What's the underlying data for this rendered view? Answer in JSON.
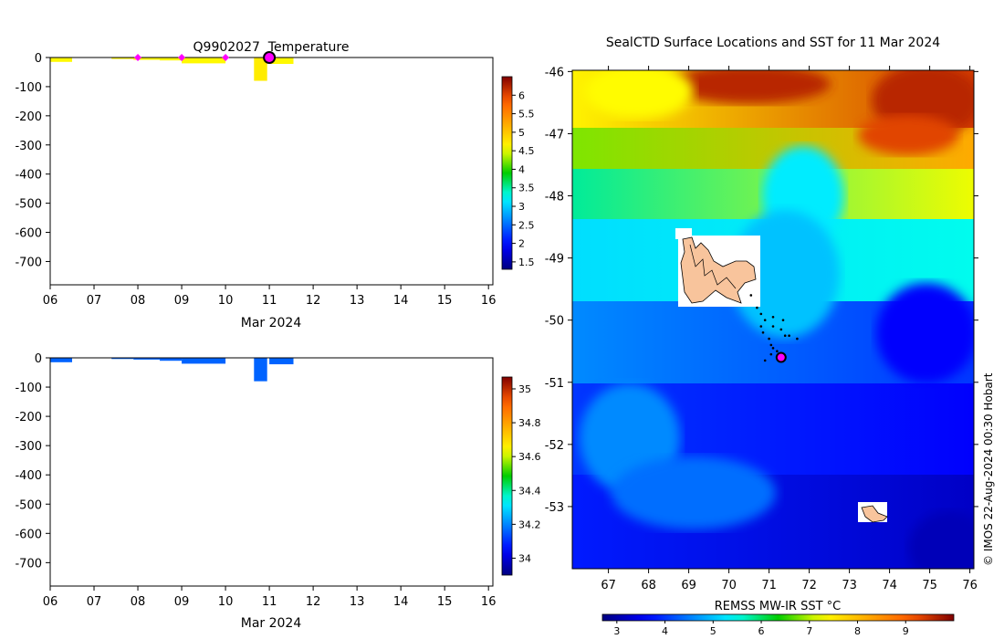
{
  "chart_data": [
    {
      "id": "temperature-profile",
      "type": "heatmap",
      "title": "Q9902027  Temperature",
      "xlabel": "Mar 2024",
      "ylabel": "",
      "x_ticks": [
        "06",
        "07",
        "08",
        "09",
        "10",
        "11",
        "12",
        "13",
        "14",
        "15",
        "16"
      ],
      "x_tick_values": [
        6,
        7,
        8,
        9,
        10,
        11,
        12,
        13,
        14,
        15,
        16
      ],
      "xlim": [
        6,
        16.1
      ],
      "y_ticks": [
        0,
        -100,
        -200,
        -300,
        -400,
        -500,
        -600,
        -700
      ],
      "ylim": [
        -780,
        0
      ],
      "grid": false,
      "colorbar": {
        "range": [
          1.3,
          6.5
        ],
        "ticks": [
          1.5,
          2,
          2.5,
          3,
          3.5,
          4,
          4.5,
          5,
          5.5,
          6
        ],
        "tick_labels": [
          "1.5",
          "2",
          "2.5",
          "3",
          "3.5",
          "4",
          "4.5",
          "5",
          "5.5",
          "6"
        ]
      },
      "profiles": [
        {
          "x0": 6.0,
          "x1": 6.5,
          "depth": -15,
          "value": 4.6
        },
        {
          "x0": 7.4,
          "x1": 7.9,
          "depth": -5,
          "value": 4.6
        },
        {
          "x0": 7.9,
          "x1": 8.5,
          "depth": -8,
          "value": 4.6
        },
        {
          "x0": 8.5,
          "x1": 9.0,
          "depth": -10,
          "value": 4.6
        },
        {
          "x0": 9.0,
          "x1": 10.0,
          "depth": -20,
          "value": 4.6
        },
        {
          "x0": 10.65,
          "x1": 10.95,
          "depth": -80,
          "value": 4.7
        },
        {
          "x0": 11.0,
          "x1": 11.55,
          "depth": -22,
          "value": 4.6
        }
      ],
      "surface_markers": [
        8.0,
        9.0,
        10.0
      ],
      "current_marker": 11.0
    },
    {
      "id": "salinity-profile",
      "type": "heatmap",
      "title": "",
      "xlabel": "Mar 2024",
      "ylabel": "",
      "x_ticks": [
        "06",
        "07",
        "08",
        "09",
        "10",
        "11",
        "12",
        "13",
        "14",
        "15",
        "16"
      ],
      "x_tick_values": [
        6,
        7,
        8,
        9,
        10,
        11,
        12,
        13,
        14,
        15,
        16
      ],
      "xlim": [
        6,
        16.1
      ],
      "y_ticks": [
        0,
        -100,
        -200,
        -300,
        -400,
        -500,
        -600,
        -700
      ],
      "ylim": [
        -780,
        0
      ],
      "grid": false,
      "colorbar": {
        "range": [
          33.9,
          35.07
        ],
        "ticks": [
          34.0,
          34.2,
          34.4,
          34.6,
          34.8,
          35.0
        ],
        "tick_labels": [
          "34",
          "34.2",
          "34.4",
          "34.6",
          "34.8",
          "35"
        ]
      },
      "profiles": [
        {
          "x0": 6.0,
          "x1": 6.5,
          "depth": -15,
          "value": 34.16
        },
        {
          "x0": 7.4,
          "x1": 7.9,
          "depth": -4,
          "value": 34.16
        },
        {
          "x0": 7.9,
          "x1": 8.5,
          "depth": -6,
          "value": 34.16
        },
        {
          "x0": 8.5,
          "x1": 9.0,
          "depth": -10,
          "value": 34.16
        },
        {
          "x0": 9.0,
          "x1": 10.0,
          "depth": -20,
          "value": 34.16
        },
        {
          "x0": 10.65,
          "x1": 10.95,
          "depth": -80,
          "value": 34.16
        },
        {
          "x0": 11.0,
          "x1": 11.55,
          "depth": -22,
          "value": 34.16
        }
      ]
    },
    {
      "id": "sst-map",
      "type": "heatmap",
      "title": "SealCTD Surface Locations and SST for 11 Mar 2024",
      "xlabel": "",
      "ylabel": "",
      "xlim": [
        66.1,
        76.1
      ],
      "ylim": [
        -54,
        -45.98
      ],
      "x_ticks": [
        67,
        68,
        69,
        70,
        71,
        72,
        73,
        74,
        75,
        76
      ],
      "y_ticks": [
        -46,
        -47,
        -48,
        -49,
        -50,
        -51,
        -52,
        -53
      ],
      "grid": false,
      "colorbar": {
        "label": "REMSS MW-IR SST °C",
        "range": [
          2.7,
          10.0
        ],
        "ticks": [
          3,
          4,
          5,
          6,
          7,
          8,
          9
        ],
        "tick_labels": [
          "3",
          "4",
          "5",
          "6",
          "7",
          "8",
          "9"
        ]
      },
      "track": [
        [
          70.55,
          -49.6
        ],
        [
          70.7,
          -49.8
        ],
        [
          70.8,
          -49.9
        ],
        [
          70.9,
          -50.0
        ],
        [
          70.8,
          -50.1
        ],
        [
          70.85,
          -50.2
        ],
        [
          71.1,
          -49.95
        ],
        [
          71.1,
          -50.1
        ],
        [
          71.35,
          -50.0
        ],
        [
          71.3,
          -50.15
        ],
        [
          71.4,
          -50.25
        ],
        [
          71.5,
          -50.25
        ],
        [
          71.7,
          -50.3
        ],
        [
          71.0,
          -50.3
        ],
        [
          71.05,
          -50.4
        ],
        [
          71.1,
          -50.45
        ],
        [
          71.2,
          -50.5
        ],
        [
          71.05,
          -50.55
        ],
        [
          70.9,
          -50.65
        ]
      ],
      "current_position": [
        71.3,
        -50.6
      ],
      "credit": "© IMOS 22-Aug-2024 00:30 Hobart"
    }
  ]
}
